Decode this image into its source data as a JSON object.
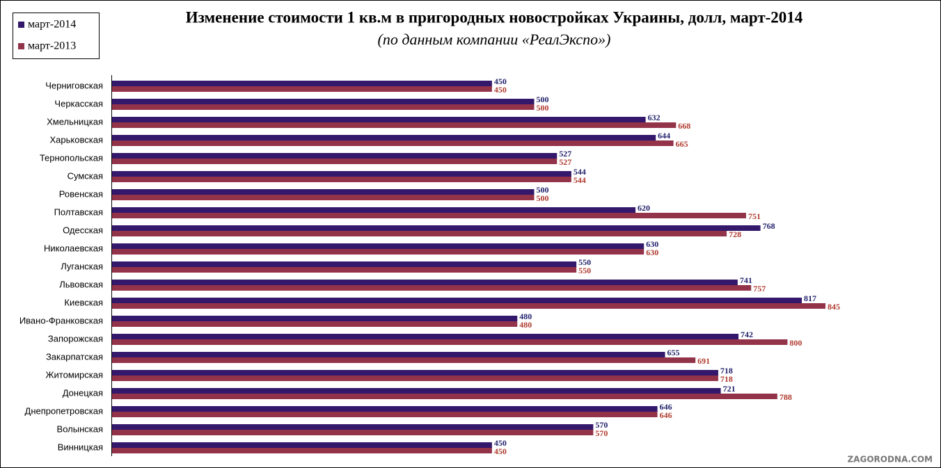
{
  "chart_data": {
    "type": "barh",
    "title": "Изменение стоимости 1 кв.м в пригородных новостройках Украины, долл, март-2014",
    "subtitle": "(по данным компании «РеалЭкспо»)",
    "watermark": "ZAGORODNA.COM",
    "legend": "top-left",
    "categories": [
      "Черниговская",
      "Черкасская",
      "Хмельницкая",
      "Харьковская",
      "Тернопольская",
      "Сумская",
      "Ровенская",
      "Полтавская",
      "Одесская",
      "Николаевская",
      "Луганская",
      "Львовская",
      "Киевская",
      "Ивано-Франковская",
      "Запорожская",
      "Закарпатская",
      "Житомирская",
      "Донецкая",
      "Днепропетровская",
      "Волынская",
      "Винницкая"
    ],
    "series": [
      {
        "name": "март-2014",
        "color": "#33186b",
        "label_color": "#1f1f6b",
        "values": [
          450,
          500,
          632,
          644,
          527,
          544,
          500,
          620,
          768,
          630,
          550,
          741,
          817,
          480,
          742,
          655,
          718,
          721,
          646,
          570,
          450
        ]
      },
      {
        "name": "март-2013",
        "color": "#93334a",
        "label_color": "#b03a2e",
        "values": [
          450,
          500,
          668,
          665,
          527,
          544,
          500,
          751,
          728,
          630,
          550,
          757,
          845,
          480,
          800,
          691,
          718,
          788,
          646,
          570,
          450
        ]
      }
    ]
  }
}
